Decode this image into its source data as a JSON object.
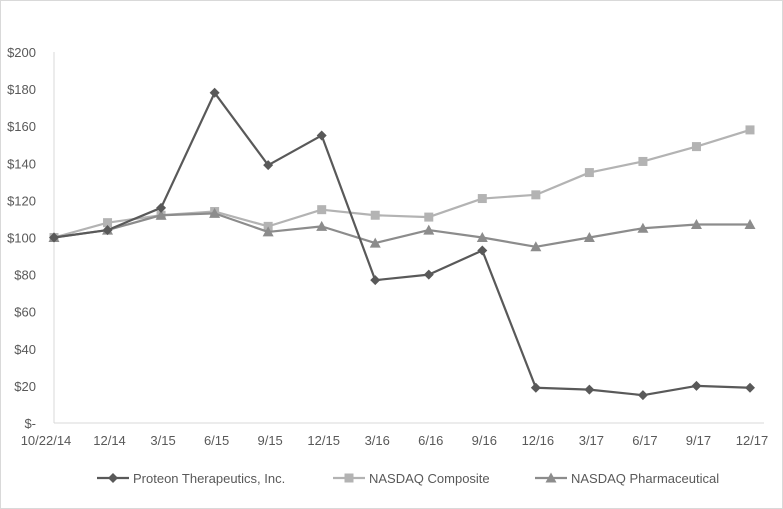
{
  "chart_data": {
    "type": "line",
    "title": "",
    "xlabel": "",
    "ylabel": "",
    "categories": [
      "10/22/14",
      "12/14",
      "3/15",
      "6/15",
      "9/15",
      "12/15",
      "3/16",
      "6/16",
      "9/16",
      "12/16",
      "3/17",
      "6/17",
      "9/17",
      "12/17"
    ],
    "ylim": [
      0,
      200
    ],
    "yticks": [
      0,
      20,
      40,
      60,
      80,
      100,
      120,
      140,
      160,
      180,
      200
    ],
    "ytick_labels": [
      "$-",
      "$20",
      "$40",
      "$60",
      "$80",
      "$100",
      "$120",
      "$140",
      "$160",
      "$180",
      "$200"
    ],
    "grid": false,
    "legend_position": "bottom",
    "series": [
      {
        "name": "Proteon Therapeutics, Inc.",
        "color": "#595959",
        "marker": "diamond",
        "values": [
          100,
          104,
          116,
          178,
          139,
          155,
          77,
          80,
          93,
          19,
          18,
          15,
          20,
          19
        ]
      },
      {
        "name": "NASDAQ Composite",
        "color": "#b3b3b3",
        "marker": "square",
        "values": [
          100,
          108,
          112,
          114,
          106,
          115,
          112,
          111,
          121,
          123,
          135,
          141,
          149,
          158
        ]
      },
      {
        "name": "NASDAQ Pharmaceutical",
        "color": "#8c8c8c",
        "marker": "triangle",
        "values": [
          100,
          104,
          112,
          113,
          103,
          106,
          97,
          104,
          100,
          95,
          100,
          105,
          107,
          107
        ]
      }
    ]
  }
}
